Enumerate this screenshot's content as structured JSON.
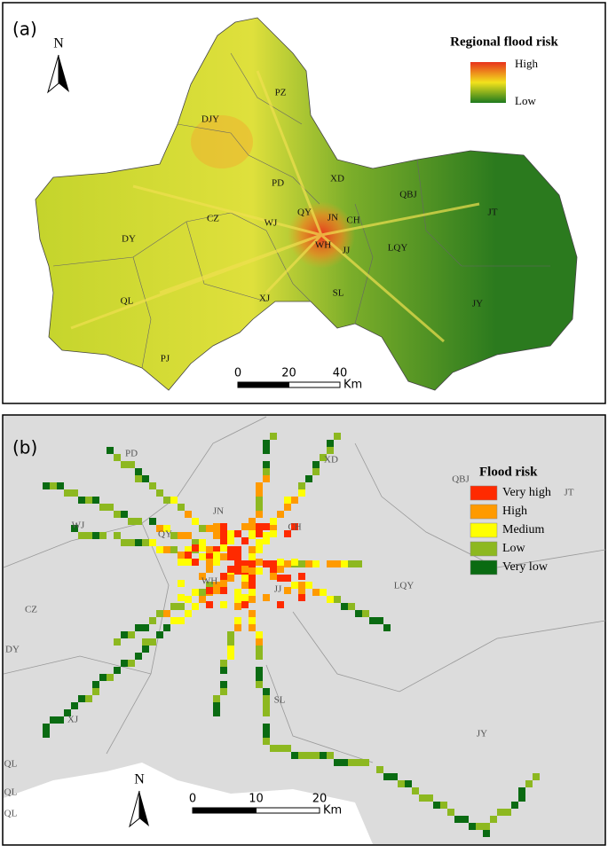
{
  "panel_a": {
    "label": "(a)",
    "north": "N",
    "legend": {
      "title": "Regional flood risk",
      "high": "High",
      "low": "Low",
      "colors": [
        "#e8321c",
        "#f2e21c",
        "#1e7a1e"
      ]
    },
    "districts": [
      "DJY",
      "PZ",
      "PD",
      "XD",
      "QBJ",
      "JT",
      "CZ",
      "WJ",
      "QY",
      "JN",
      "CH",
      "DY",
      "WH",
      "JJ",
      "LQY",
      "XJ",
      "SL",
      "QL",
      "JY",
      "PJ"
    ],
    "scale": {
      "ticks": [
        0,
        20,
        40
      ],
      "unit": "Km"
    }
  },
  "panel_b": {
    "label": "(b)",
    "north": "N",
    "legend": {
      "title": "Flood risk",
      "classes": [
        {
          "name": "Very high",
          "color": "#ff2a00"
        },
        {
          "name": "High",
          "color": "#ff9a00"
        },
        {
          "name": "Medium",
          "color": "#ffff00"
        },
        {
          "name": "Low",
          "color": "#8db820"
        },
        {
          "name": "Very low",
          "color": "#0a6b12"
        }
      ]
    },
    "districts": [
      "PD",
      "XD",
      "QBJ",
      "JT",
      "WJ",
      "QY",
      "JN",
      "CH",
      "LQY",
      "CZ",
      "WH",
      "JJ",
      "DY",
      "XJ",
      "SL",
      "JY",
      "QL",
      "QL",
      "QL"
    ],
    "scale": {
      "ticks": [
        0,
        10,
        20
      ],
      "unit": "Km"
    }
  }
}
